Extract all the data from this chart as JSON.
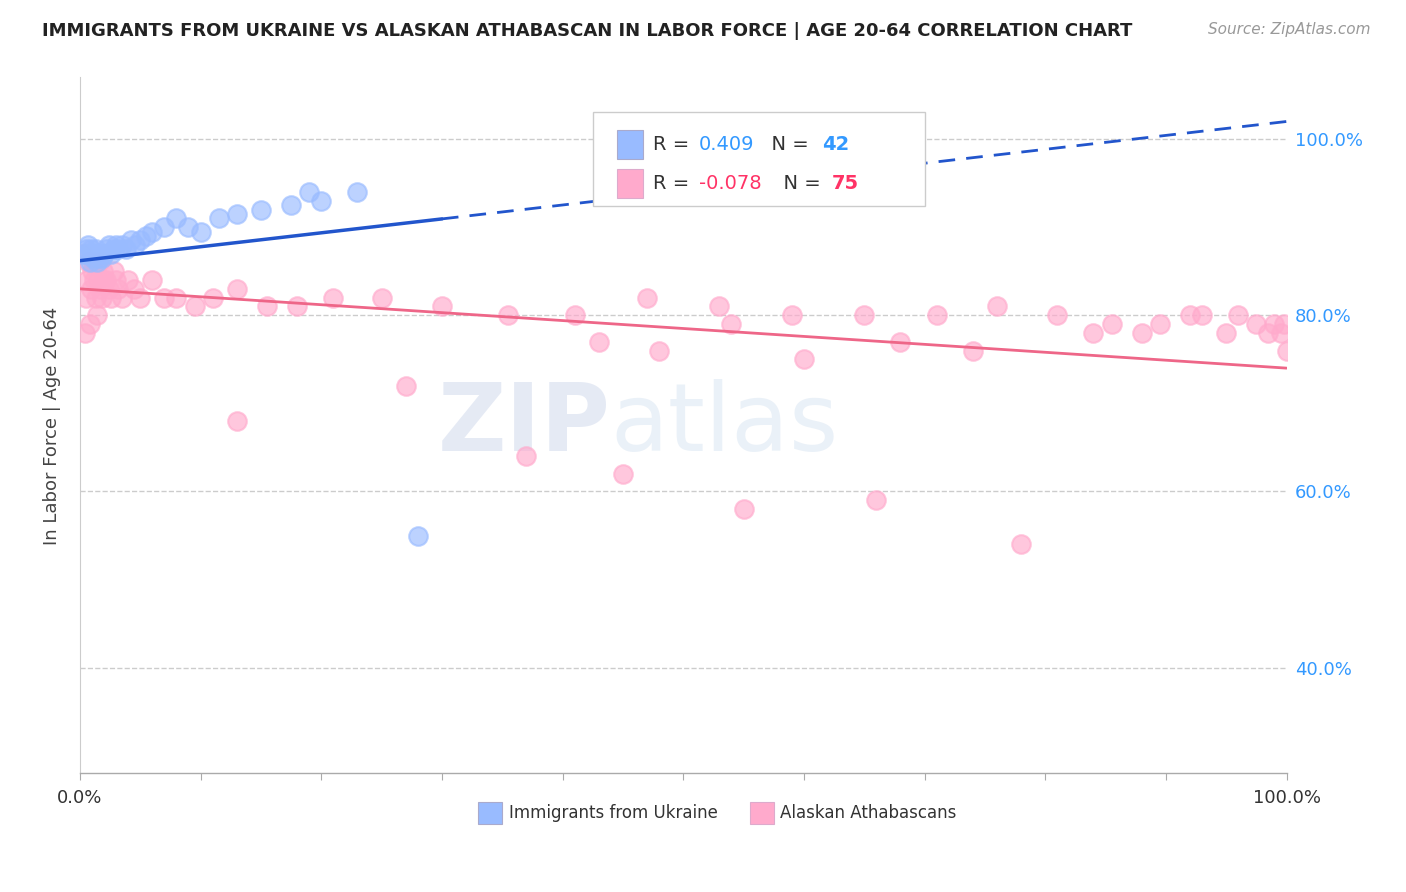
{
  "title": "IMMIGRANTS FROM UKRAINE VS ALASKAN ATHABASCAN IN LABOR FORCE | AGE 20-64 CORRELATION CHART",
  "source": "Source: ZipAtlas.com",
  "ylabel": "In Labor Force | Age 20-64",
  "xlim": [
    0.0,
    1.0
  ],
  "ylim": [
    0.28,
    1.07
  ],
  "yticks": [
    0.4,
    0.6,
    0.8,
    1.0
  ],
  "ytick_labels": [
    "40.0%",
    "60.0%",
    "80.0%",
    "100.0%"
  ],
  "xticks": [
    0.0,
    0.1,
    0.2,
    0.3,
    0.4,
    0.5,
    0.6,
    0.7,
    0.8,
    0.9,
    1.0
  ],
  "xtick_labels_show": [
    "0.0%",
    "",
    "",
    "",
    "",
    "",
    "",
    "",
    "",
    "",
    "100.0%"
  ],
  "blue_color": "#99BBFF",
  "pink_color": "#FFAACC",
  "trend_blue_color": "#2255CC",
  "trend_pink_color": "#EE6688",
  "watermark_zip": "ZIP",
  "watermark_atlas": "atlas",
  "blue_r": "0.409",
  "blue_n": "42",
  "pink_r": "-0.078",
  "pink_n": "75",
  "blue_points_x": [
    0.003,
    0.005,
    0.006,
    0.007,
    0.008,
    0.009,
    0.01,
    0.011,
    0.012,
    0.013,
    0.014,
    0.015,
    0.016,
    0.017,
    0.018,
    0.019,
    0.02,
    0.022,
    0.024,
    0.026,
    0.028,
    0.03,
    0.032,
    0.035,
    0.038,
    0.042,
    0.046,
    0.05,
    0.055,
    0.06,
    0.07,
    0.08,
    0.09,
    0.1,
    0.115,
    0.13,
    0.15,
    0.175,
    0.2,
    0.23,
    0.28,
    0.19
  ],
  "blue_points_y": [
    0.87,
    0.875,
    0.87,
    0.88,
    0.86,
    0.875,
    0.87,
    0.865,
    0.87,
    0.875,
    0.86,
    0.87,
    0.865,
    0.87,
    0.865,
    0.87,
    0.87,
    0.875,
    0.88,
    0.87,
    0.875,
    0.88,
    0.875,
    0.88,
    0.875,
    0.885,
    0.88,
    0.885,
    0.89,
    0.895,
    0.9,
    0.91,
    0.9,
    0.895,
    0.91,
    0.915,
    0.92,
    0.925,
    0.93,
    0.94,
    0.55,
    0.94
  ],
  "pink_points_x": [
    0.002,
    0.004,
    0.005,
    0.006,
    0.007,
    0.008,
    0.009,
    0.01,
    0.011,
    0.012,
    0.013,
    0.014,
    0.015,
    0.016,
    0.017,
    0.018,
    0.019,
    0.02,
    0.022,
    0.024,
    0.026,
    0.028,
    0.03,
    0.032,
    0.035,
    0.04,
    0.045,
    0.05,
    0.06,
    0.07,
    0.08,
    0.095,
    0.11,
    0.13,
    0.155,
    0.18,
    0.21,
    0.25,
    0.3,
    0.355,
    0.41,
    0.47,
    0.53,
    0.59,
    0.65,
    0.71,
    0.76,
    0.81,
    0.855,
    0.895,
    0.93,
    0.96,
    0.975,
    0.985,
    0.99,
    0.995,
    0.998,
    1.0,
    0.43,
    0.48,
    0.54,
    0.6,
    0.68,
    0.74,
    0.84,
    0.88,
    0.92,
    0.95,
    0.13,
    0.27,
    0.37,
    0.45,
    0.55,
    0.66,
    0.78
  ],
  "pink_points_y": [
    0.87,
    0.78,
    0.82,
    0.84,
    0.86,
    0.79,
    0.83,
    0.85,
    0.86,
    0.84,
    0.82,
    0.8,
    0.84,
    0.86,
    0.83,
    0.82,
    0.85,
    0.84,
    0.84,
    0.83,
    0.82,
    0.85,
    0.84,
    0.83,
    0.82,
    0.84,
    0.83,
    0.82,
    0.84,
    0.82,
    0.82,
    0.81,
    0.82,
    0.83,
    0.81,
    0.81,
    0.82,
    0.82,
    0.81,
    0.8,
    0.8,
    0.82,
    0.81,
    0.8,
    0.8,
    0.8,
    0.81,
    0.8,
    0.79,
    0.79,
    0.8,
    0.8,
    0.79,
    0.78,
    0.79,
    0.78,
    0.79,
    0.76,
    0.77,
    0.76,
    0.79,
    0.75,
    0.77,
    0.76,
    0.78,
    0.78,
    0.8,
    0.78,
    0.68,
    0.72,
    0.64,
    0.62,
    0.58,
    0.59,
    0.54
  ],
  "blue_trend_x0": 0.0,
  "blue_trend_x_solid_end": 0.3,
  "blue_trend_x1": 1.0,
  "blue_trend_y0": 0.862,
  "blue_trend_y1": 1.02,
  "pink_trend_x0": 0.0,
  "pink_trend_x1": 1.0,
  "pink_trend_y0": 0.83,
  "pink_trend_y1": 0.74
}
